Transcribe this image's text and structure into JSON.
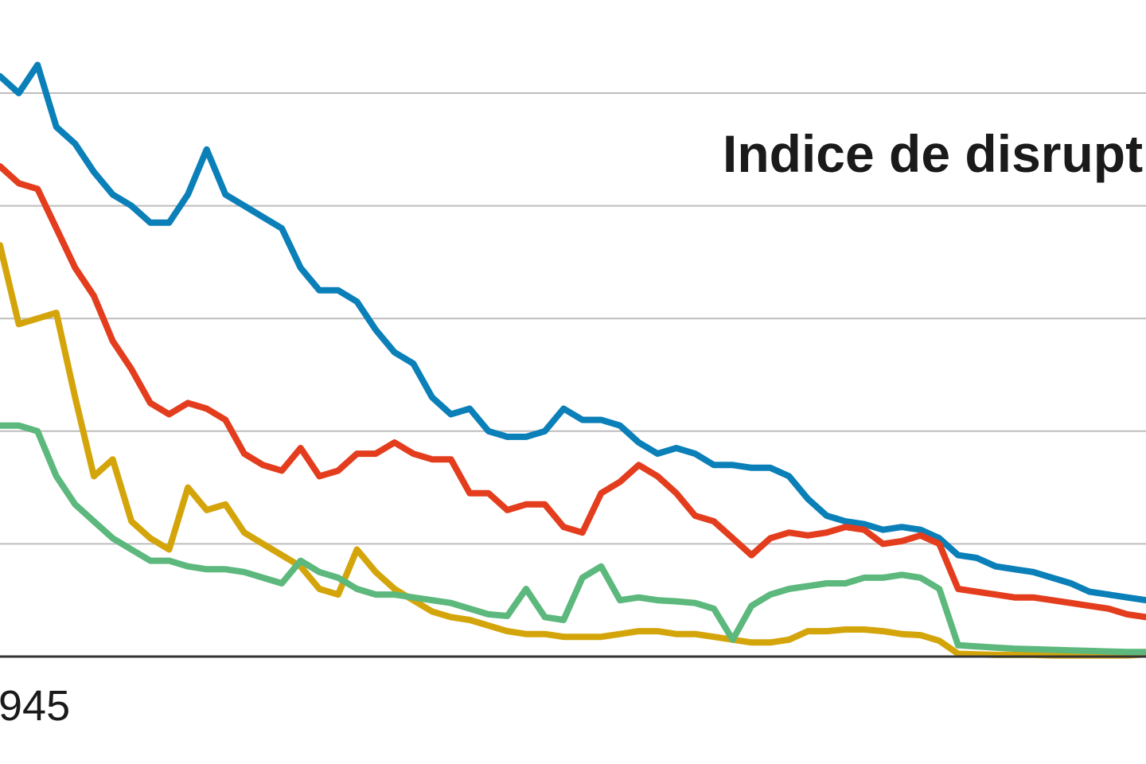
{
  "chart_data": {
    "type": "line",
    "title": "Indice de disrupt",
    "xlabel": "",
    "ylabel": "",
    "x_tick_labels": [
      {
        "label": "945",
        "x": 1945
      }
    ],
    "xlim": [
      1945,
      2006
    ],
    "ylim": [
      0,
      1
    ],
    "grid": "horizontal",
    "gridlines": [
      0.2,
      0.4,
      0.6,
      0.8,
      1.0
    ],
    "legend": "none",
    "series": [
      {
        "color": "#0a7fb8",
        "points": [
          [
            1945,
            1.03
          ],
          [
            1946,
            1.0
          ],
          [
            1947,
            1.05
          ],
          [
            1948,
            0.94
          ],
          [
            1949,
            0.91
          ],
          [
            1950,
            0.86
          ],
          [
            1951,
            0.82
          ],
          [
            1952,
            0.8
          ],
          [
            1953,
            0.77
          ],
          [
            1954,
            0.77
          ],
          [
            1955,
            0.82
          ],
          [
            1956,
            0.9
          ],
          [
            1957,
            0.82
          ],
          [
            1958,
            0.8
          ],
          [
            1959,
            0.78
          ],
          [
            1960,
            0.76
          ],
          [
            1961,
            0.69
          ],
          [
            1962,
            0.65
          ],
          [
            1963,
            0.65
          ],
          [
            1964,
            0.63
          ],
          [
            1965,
            0.58
          ],
          [
            1966,
            0.54
          ],
          [
            1967,
            0.52
          ],
          [
            1968,
            0.46
          ],
          [
            1969,
            0.43
          ],
          [
            1970,
            0.44
          ],
          [
            1971,
            0.4
          ],
          [
            1972,
            0.39
          ],
          [
            1973,
            0.39
          ],
          [
            1974,
            0.4
          ],
          [
            1975,
            0.44
          ],
          [
            1976,
            0.42
          ],
          [
            1977,
            0.42
          ],
          [
            1978,
            0.41
          ],
          [
            1979,
            0.38
          ],
          [
            1980,
            0.36
          ],
          [
            1981,
            0.37
          ],
          [
            1982,
            0.36
          ],
          [
            1983,
            0.34
          ],
          [
            1984,
            0.34
          ],
          [
            1985,
            0.335
          ],
          [
            1986,
            0.335
          ],
          [
            1987,
            0.32
          ],
          [
            1988,
            0.28
          ],
          [
            1989,
            0.25
          ],
          [
            1990,
            0.24
          ],
          [
            1991,
            0.235
          ],
          [
            1992,
            0.225
          ],
          [
            1993,
            0.23
          ],
          [
            1994,
            0.225
          ],
          [
            1995,
            0.21
          ],
          [
            1996,
            0.18
          ],
          [
            1997,
            0.175
          ],
          [
            1998,
            0.16
          ],
          [
            1999,
            0.155
          ],
          [
            2000,
            0.15
          ],
          [
            2001,
            0.14
          ],
          [
            2002,
            0.13
          ],
          [
            2003,
            0.115
          ],
          [
            2004,
            0.11
          ],
          [
            2005,
            0.105
          ],
          [
            2006,
            0.1
          ]
        ]
      },
      {
        "color": "#e33d1e",
        "points": [
          [
            1945,
            0.87
          ],
          [
            1946,
            0.84
          ],
          [
            1947,
            0.83
          ],
          [
            1948,
            0.76
          ],
          [
            1949,
            0.69
          ],
          [
            1950,
            0.64
          ],
          [
            1951,
            0.56
          ],
          [
            1952,
            0.51
          ],
          [
            1953,
            0.45
          ],
          [
            1954,
            0.43
          ],
          [
            1955,
            0.45
          ],
          [
            1956,
            0.44
          ],
          [
            1957,
            0.42
          ],
          [
            1958,
            0.36
          ],
          [
            1959,
            0.34
          ],
          [
            1960,
            0.33
          ],
          [
            1961,
            0.37
          ],
          [
            1962,
            0.32
          ],
          [
            1963,
            0.33
          ],
          [
            1964,
            0.36
          ],
          [
            1965,
            0.36
          ],
          [
            1966,
            0.38
          ],
          [
            1967,
            0.36
          ],
          [
            1968,
            0.35
          ],
          [
            1969,
            0.35
          ],
          [
            1970,
            0.29
          ],
          [
            1971,
            0.29
          ],
          [
            1972,
            0.26
          ],
          [
            1973,
            0.27
          ],
          [
            1974,
            0.27
          ],
          [
            1975,
            0.23
          ],
          [
            1976,
            0.22
          ],
          [
            1977,
            0.29
          ],
          [
            1978,
            0.31
          ],
          [
            1979,
            0.34
          ],
          [
            1980,
            0.32
          ],
          [
            1981,
            0.29
          ],
          [
            1982,
            0.25
          ],
          [
            1983,
            0.24
          ],
          [
            1984,
            0.21
          ],
          [
            1985,
            0.18
          ],
          [
            1986,
            0.21
          ],
          [
            1987,
            0.22
          ],
          [
            1988,
            0.215
          ],
          [
            1989,
            0.22
          ],
          [
            1990,
            0.23
          ],
          [
            1991,
            0.225
          ],
          [
            1992,
            0.2
          ],
          [
            1993,
            0.205
          ],
          [
            1994,
            0.215
          ],
          [
            1995,
            0.2
          ],
          [
            1996,
            0.12
          ],
          [
            1997,
            0.115
          ],
          [
            1998,
            0.11
          ],
          [
            1999,
            0.105
          ],
          [
            2000,
            0.105
          ],
          [
            2001,
            0.1
          ],
          [
            2002,
            0.095
          ],
          [
            2003,
            0.09
          ],
          [
            2004,
            0.085
          ],
          [
            2005,
            0.075
          ],
          [
            2006,
            0.07
          ]
        ]
      },
      {
        "color": "#d4a50b",
        "points": [
          [
            1945,
            0.73
          ],
          [
            1946,
            0.59
          ],
          [
            1947,
            0.6
          ],
          [
            1948,
            0.61
          ],
          [
            1949,
            0.46
          ],
          [
            1950,
            0.32
          ],
          [
            1951,
            0.35
          ],
          [
            1952,
            0.24
          ],
          [
            1953,
            0.21
          ],
          [
            1954,
            0.19
          ],
          [
            1955,
            0.3
          ],
          [
            1956,
            0.26
          ],
          [
            1957,
            0.27
          ],
          [
            1958,
            0.22
          ],
          [
            1959,
            0.2
          ],
          [
            1960,
            0.18
          ],
          [
            1961,
            0.16
          ],
          [
            1962,
            0.12
          ],
          [
            1963,
            0.11
          ],
          [
            1964,
            0.19
          ],
          [
            1965,
            0.15
          ],
          [
            1966,
            0.12
          ],
          [
            1967,
            0.1
          ],
          [
            1968,
            0.08
          ],
          [
            1969,
            0.07
          ],
          [
            1970,
            0.065
          ],
          [
            1971,
            0.055
          ],
          [
            1972,
            0.045
          ],
          [
            1973,
            0.04
          ],
          [
            1974,
            0.04
          ],
          [
            1975,
            0.035
          ],
          [
            1976,
            0.035
          ],
          [
            1977,
            0.035
          ],
          [
            1978,
            0.04
          ],
          [
            1979,
            0.045
          ],
          [
            1980,
            0.045
          ],
          [
            1981,
            0.04
          ],
          [
            1982,
            0.04
          ],
          [
            1983,
            0.035
          ],
          [
            1984,
            0.03
          ],
          [
            1985,
            0.025
          ],
          [
            1986,
            0.025
          ],
          [
            1987,
            0.03
          ],
          [
            1988,
            0.045
          ],
          [
            1989,
            0.045
          ],
          [
            1990,
            0.048
          ],
          [
            1991,
            0.048
          ],
          [
            1992,
            0.045
          ],
          [
            1993,
            0.04
          ],
          [
            1994,
            0.038
          ],
          [
            1995,
            0.028
          ],
          [
            1996,
            0.005
          ],
          [
            1997,
            0.004
          ],
          [
            1998,
            0.003
          ],
          [
            1999,
            0.003
          ],
          [
            2000,
            0.003
          ],
          [
            2001,
            0.002
          ],
          [
            2002,
            0.002
          ],
          [
            2003,
            0.002
          ],
          [
            2004,
            0.002
          ],
          [
            2005,
            0.002
          ],
          [
            2006,
            0.004
          ]
        ]
      },
      {
        "color": "#5cb87c",
        "points": [
          [
            1945,
            0.41
          ],
          [
            1946,
            0.41
          ],
          [
            1947,
            0.4
          ],
          [
            1948,
            0.32
          ],
          [
            1949,
            0.27
          ],
          [
            1950,
            0.24
          ],
          [
            1951,
            0.21
          ],
          [
            1952,
            0.19
          ],
          [
            1953,
            0.17
          ],
          [
            1954,
            0.17
          ],
          [
            1955,
            0.16
          ],
          [
            1956,
            0.155
          ],
          [
            1957,
            0.155
          ],
          [
            1958,
            0.15
          ],
          [
            1959,
            0.14
          ],
          [
            1960,
            0.13
          ],
          [
            1961,
            0.17
          ],
          [
            1962,
            0.15
          ],
          [
            1963,
            0.14
          ],
          [
            1964,
            0.12
          ],
          [
            1965,
            0.11
          ],
          [
            1966,
            0.11
          ],
          [
            1967,
            0.105
          ],
          [
            1968,
            0.1
          ],
          [
            1969,
            0.095
          ],
          [
            1970,
            0.085
          ],
          [
            1971,
            0.075
          ],
          [
            1972,
            0.072
          ],
          [
            1973,
            0.12
          ],
          [
            1974,
            0.07
          ],
          [
            1975,
            0.065
          ],
          [
            1976,
            0.14
          ],
          [
            1977,
            0.16
          ],
          [
            1978,
            0.1
          ],
          [
            1979,
            0.105
          ],
          [
            1980,
            0.1
          ],
          [
            1981,
            0.098
          ],
          [
            1982,
            0.095
          ],
          [
            1983,
            0.085
          ],
          [
            1984,
            0.03
          ],
          [
            1985,
            0.09
          ],
          [
            1986,
            0.11
          ],
          [
            1987,
            0.12
          ],
          [
            1988,
            0.125
          ],
          [
            1989,
            0.13
          ],
          [
            1990,
            0.13
          ],
          [
            1991,
            0.14
          ],
          [
            1992,
            0.14
          ],
          [
            1993,
            0.145
          ],
          [
            1994,
            0.14
          ],
          [
            1995,
            0.12
          ],
          [
            1996,
            0.02
          ],
          [
            1997,
            0.018
          ],
          [
            1998,
            0.016
          ],
          [
            1999,
            0.014
          ],
          [
            2000,
            0.013
          ],
          [
            2001,
            0.012
          ],
          [
            2002,
            0.011
          ],
          [
            2003,
            0.01
          ],
          [
            2004,
            0.009
          ],
          [
            2005,
            0.008
          ],
          [
            2006,
            0.008
          ]
        ]
      }
    ]
  }
}
